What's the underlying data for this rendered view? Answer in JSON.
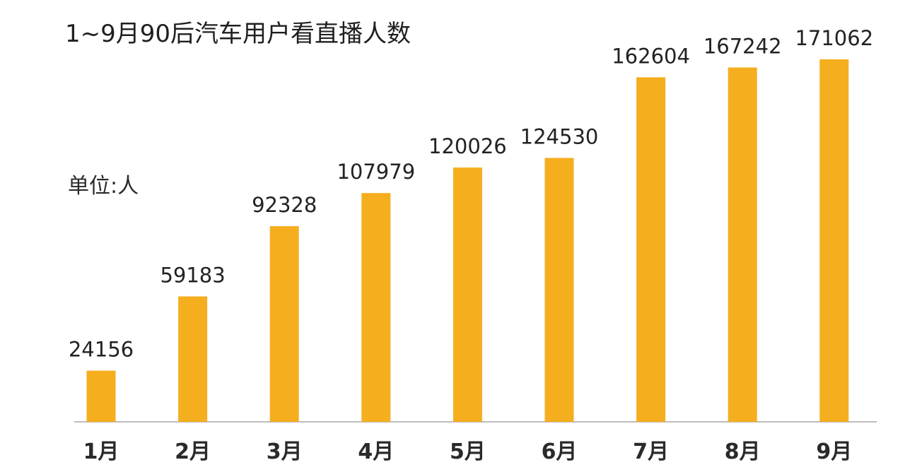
{
  "chart_data": {
    "type": "bar",
    "title": "1~9月90后汽车用户看直播人数",
    "unit_label": "单位:人",
    "categories": [
      "1月",
      "2月",
      "3月",
      "4月",
      "5月",
      "6月",
      "7月",
      "8月",
      "9月"
    ],
    "values": [
      24156,
      59183,
      92328,
      107979,
      120026,
      124530,
      162604,
      167242,
      171062
    ],
    "bar_color": "#F5AE1E",
    "data_labels": true,
    "grid": false,
    "legend": "none"
  }
}
